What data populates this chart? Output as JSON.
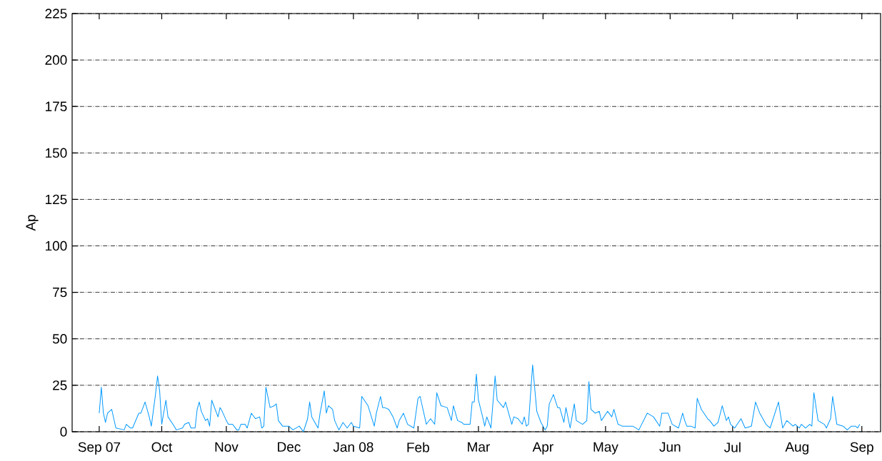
{
  "chart_data": {
    "type": "line",
    "ylabel": "Ap",
    "color": "#0099ff",
    "grid": "y",
    "xlim": [
      "2007-08-19",
      "2008-09-10"
    ],
    "ylim": [
      0,
      225
    ],
    "yticks": [
      0,
      25,
      50,
      75,
      100,
      125,
      150,
      175,
      200,
      225
    ],
    "xticks": [
      {
        "value": "2007-09-01",
        "label": "Sep 07"
      },
      {
        "value": "2007-10-01",
        "label": "Oct"
      },
      {
        "value": "2007-11-01",
        "label": "Nov"
      },
      {
        "value": "2007-12-01",
        "label": "Dec"
      },
      {
        "value": "2008-01-01",
        "label": "Jan 08"
      },
      {
        "value": "2008-02-01",
        "label": "Feb"
      },
      {
        "value": "2008-03-01",
        "label": "Mar"
      },
      {
        "value": "2008-04-01",
        "label": "Apr"
      },
      {
        "value": "2008-05-01",
        "label": "May"
      },
      {
        "value": "2008-06-01",
        "label": "Jun"
      },
      {
        "value": "2008-07-01",
        "label": "Jul"
      },
      {
        "value": "2008-08-01",
        "label": "Aug"
      },
      {
        "value": "2008-09-01",
        "label": "Sep"
      }
    ],
    "x": [
      "2007-09-01",
      "2007-09-02",
      "2007-09-03",
      "2007-09-04",
      "2007-09-05",
      "2007-09-07",
      "2007-09-08",
      "2007-09-09",
      "2007-09-13",
      "2007-09-14",
      "2007-09-16",
      "2007-09-17",
      "2007-09-20",
      "2007-09-21",
      "2007-09-23",
      "2007-09-25",
      "2007-09-26",
      "2007-09-28",
      "2007-09-29",
      "2007-09-30",
      "2007-10-01",
      "2007-10-03",
      "2007-10-04",
      "2007-10-07",
      "2007-10-08",
      "2007-10-11",
      "2007-10-12",
      "2007-10-14",
      "2007-10-15",
      "2007-10-17",
      "2007-10-18",
      "2007-10-19",
      "2007-10-20",
      "2007-10-22",
      "2007-10-23",
      "2007-10-24",
      "2007-10-25",
      "2007-10-26",
      "2007-10-28",
      "2007-10-29",
      "2007-10-30",
      "2007-11-01",
      "2007-11-02",
      "2007-11-04",
      "2007-11-06",
      "2007-11-07",
      "2007-11-08",
      "2007-11-10",
      "2007-11-11",
      "2007-11-13",
      "2007-11-15",
      "2007-11-17",
      "2007-11-18",
      "2007-11-19",
      "2007-11-20",
      "2007-11-22",
      "2007-11-24",
      "2007-11-25",
      "2007-11-26",
      "2007-11-28",
      "2007-12-01",
      "2007-12-03",
      "2007-12-06",
      "2007-12-08",
      "2007-12-10",
      "2007-12-11",
      "2007-12-12",
      "2007-12-15",
      "2007-12-16",
      "2007-12-18",
      "2007-12-19",
      "2007-12-20",
      "2007-12-22",
      "2007-12-23",
      "2007-12-25",
      "2007-12-27",
      "2007-12-29",
      "2007-12-31",
      "2008-01-01",
      "2008-01-04",
      "2008-01-05",
      "2008-01-08",
      "2008-01-11",
      "2008-01-12",
      "2008-01-14",
      "2008-01-15",
      "2008-01-16",
      "2008-01-18",
      "2008-01-20",
      "2008-01-22",
      "2008-01-23",
      "2008-01-25",
      "2008-01-27",
      "2008-01-30",
      "2008-02-01",
      "2008-02-02",
      "2008-02-05",
      "2008-02-07",
      "2008-02-09",
      "2008-02-10",
      "2008-02-12",
      "2008-02-15",
      "2008-02-17",
      "2008-02-18",
      "2008-02-20",
      "2008-02-22",
      "2008-02-23",
      "2008-02-26",
      "2008-02-27",
      "2008-02-28",
      "2008-02-29",
      "2008-03-01",
      "2008-03-03",
      "2008-03-04",
      "2008-03-05",
      "2008-03-07",
      "2008-03-09",
      "2008-03-10",
      "2008-03-13",
      "2008-03-14",
      "2008-03-17",
      "2008-03-18",
      "2008-03-20",
      "2008-03-22",
      "2008-03-23",
      "2008-03-24",
      "2008-03-25",
      "2008-03-27",
      "2008-03-29",
      "2008-03-31",
      "2008-04-02",
      "2008-04-03",
      "2008-04-04",
      "2008-04-06",
      "2008-04-08",
      "2008-04-09",
      "2008-04-11",
      "2008-04-12",
      "2008-04-14",
      "2008-04-16",
      "2008-04-17",
      "2008-04-20",
      "2008-04-22",
      "2008-04-23",
      "2008-04-24",
      "2008-04-26",
      "2008-04-28",
      "2008-04-29",
      "2008-05-02",
      "2008-05-04",
      "2008-05-05",
      "2008-05-07",
      "2008-05-09",
      "2008-05-12",
      "2008-05-14",
      "2008-05-17",
      "2008-05-21",
      "2008-05-24",
      "2008-05-27",
      "2008-05-28",
      "2008-05-31",
      "2008-06-02",
      "2008-06-05",
      "2008-06-07",
      "2008-06-08",
      "2008-06-09",
      "2008-06-11",
      "2008-06-13",
      "2008-06-14",
      "2008-06-16",
      "2008-06-19",
      "2008-06-20",
      "2008-06-22",
      "2008-06-24",
      "2008-06-26",
      "2008-06-28",
      "2008-06-29",
      "2008-06-30",
      "2008-07-02",
      "2008-07-05",
      "2008-07-07",
      "2008-07-10",
      "2008-07-12",
      "2008-07-14",
      "2008-07-17",
      "2008-07-19",
      "2008-07-23",
      "2008-07-25",
      "2008-07-27",
      "2008-07-30",
      "2008-07-31",
      "2008-08-02",
      "2008-08-03",
      "2008-08-05",
      "2008-08-07",
      "2008-08-08",
      "2008-08-09",
      "2008-08-11",
      "2008-08-14",
      "2008-08-15",
      "2008-08-17",
      "2008-08-18",
      "2008-08-20",
      "2008-08-23",
      "2008-08-25",
      "2008-08-27",
      "2008-08-29",
      "2008-08-30",
      "2008-08-31"
    ],
    "values": [
      10,
      24,
      10,
      5,
      10,
      12,
      7,
      2,
      1,
      4,
      2,
      2,
      10,
      10,
      16,
      8,
      3,
      20,
      30,
      22,
      4,
      17,
      8,
      3,
      1,
      2,
      4,
      5,
      2,
      2,
      12,
      16,
      11,
      6,
      7,
      3,
      17,
      14,
      8,
      13,
      11,
      6,
      4,
      4,
      1,
      1,
      4,
      4,
      2,
      10,
      7,
      8,
      2,
      3,
      24,
      13,
      14,
      15,
      6,
      3,
      3,
      1,
      3,
      0,
      7,
      16,
      8,
      2,
      10,
      22,
      10,
      14,
      12,
      6,
      1,
      5,
      2,
      5,
      3,
      2,
      19,
      14,
      3,
      10,
      19,
      13,
      13,
      12,
      8,
      2,
      6,
      10,
      4,
      2,
      18,
      19,
      4,
      7,
      4,
      21,
      14,
      13,
      6,
      14,
      6,
      5,
      4,
      4,
      16,
      16,
      31,
      17,
      8,
      3,
      8,
      2,
      30,
      17,
      13,
      16,
      4,
      8,
      7,
      4,
      8,
      3,
      4,
      36,
      11,
      5,
      1,
      3,
      15,
      20,
      13,
      13,
      5,
      13,
      2,
      15,
      6,
      4,
      6,
      27,
      12,
      10,
      11,
      6,
      11,
      8,
      12,
      4,
      3,
      3,
      3,
      1,
      10,
      8,
      3,
      10,
      10,
      4,
      2,
      10,
      6,
      3,
      3,
      2,
      18,
      12,
      7,
      6,
      3,
      5,
      14,
      6,
      8,
      4,
      2,
      7,
      2,
      3,
      16,
      10,
      4,
      2,
      16,
      2,
      6,
      3,
      4,
      2,
      4,
      2,
      4,
      3,
      21,
      6,
      4,
      2,
      7,
      19,
      4,
      3,
      1,
      3,
      3,
      2,
      4
    ]
  }
}
